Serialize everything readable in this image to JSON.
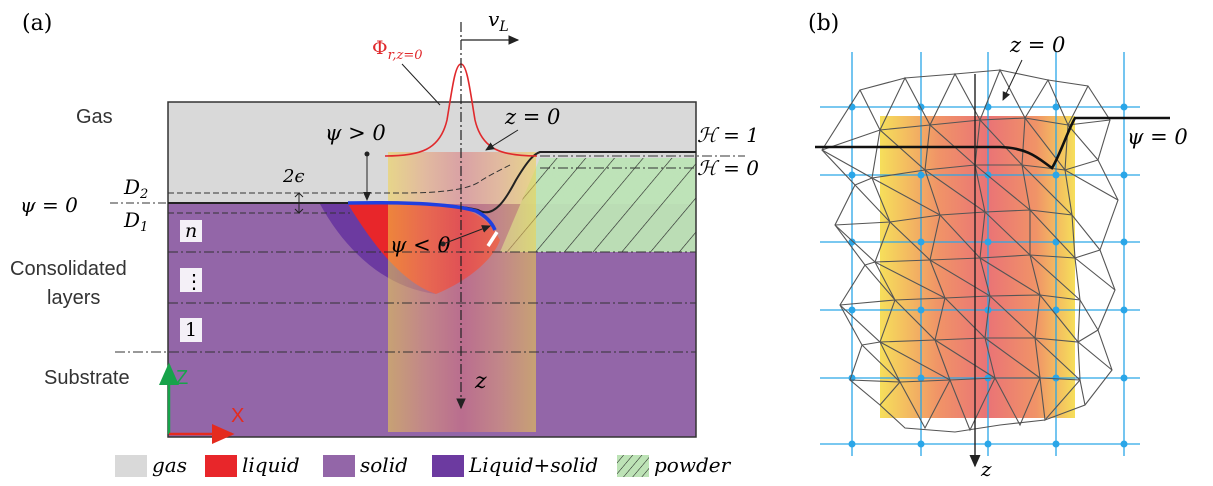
{
  "panel_a": {
    "label": "(a)",
    "laser_velocity": "v",
    "laser_velocity_sub": "L",
    "flux_symbol": "Φ",
    "flux_sub": "r,z=0",
    "region_gas": "Gas",
    "region_consolidated_line1": "Consolidated",
    "region_consolidated_line2": "layers",
    "region_substrate": "Substrate",
    "psi_zero": "ψ = 0",
    "psi_positive": "ψ > 0",
    "psi_negative": "ψ < 0",
    "z_zero": "z = 0",
    "interface_width": "2ϵ",
    "d2": "D",
    "d2_sub": "2",
    "d1": "D",
    "d1_sub": "1",
    "h_one": "ℋ = 1",
    "h_zero": "ℋ = 0",
    "layer_n": "n",
    "layer_dots": "⋮",
    "layer_1": "1",
    "axis_z_small": "z",
    "axis_Z": "Z",
    "axis_X": "X",
    "colors": {
      "gas": "#d9d9d9",
      "liquid": "#e8262a",
      "solid": "#9366a8",
      "liquid_solid": "#6c3aa0",
      "powder": "#bde3b6",
      "laser_curve": "#e0292c",
      "interface": "#1f3fe0",
      "axis_green": "#17a34a",
      "axis_red": "#e42b1e"
    }
  },
  "legend": [
    {
      "key": "gas",
      "label": "gas"
    },
    {
      "key": "liquid",
      "label": "liquid"
    },
    {
      "key": "solid",
      "label": "solid"
    },
    {
      "key": "liquid_solid",
      "label": "Liquid+solid"
    },
    {
      "key": "powder",
      "label": "powder"
    }
  ],
  "panel_b": {
    "label": "(b)",
    "z_zero": "z = 0",
    "psi_zero": "ψ = 0",
    "axis_z": "z",
    "colors": {
      "grid": "#2aa6e8",
      "mesh": "#555555",
      "front": "#111111"
    }
  }
}
